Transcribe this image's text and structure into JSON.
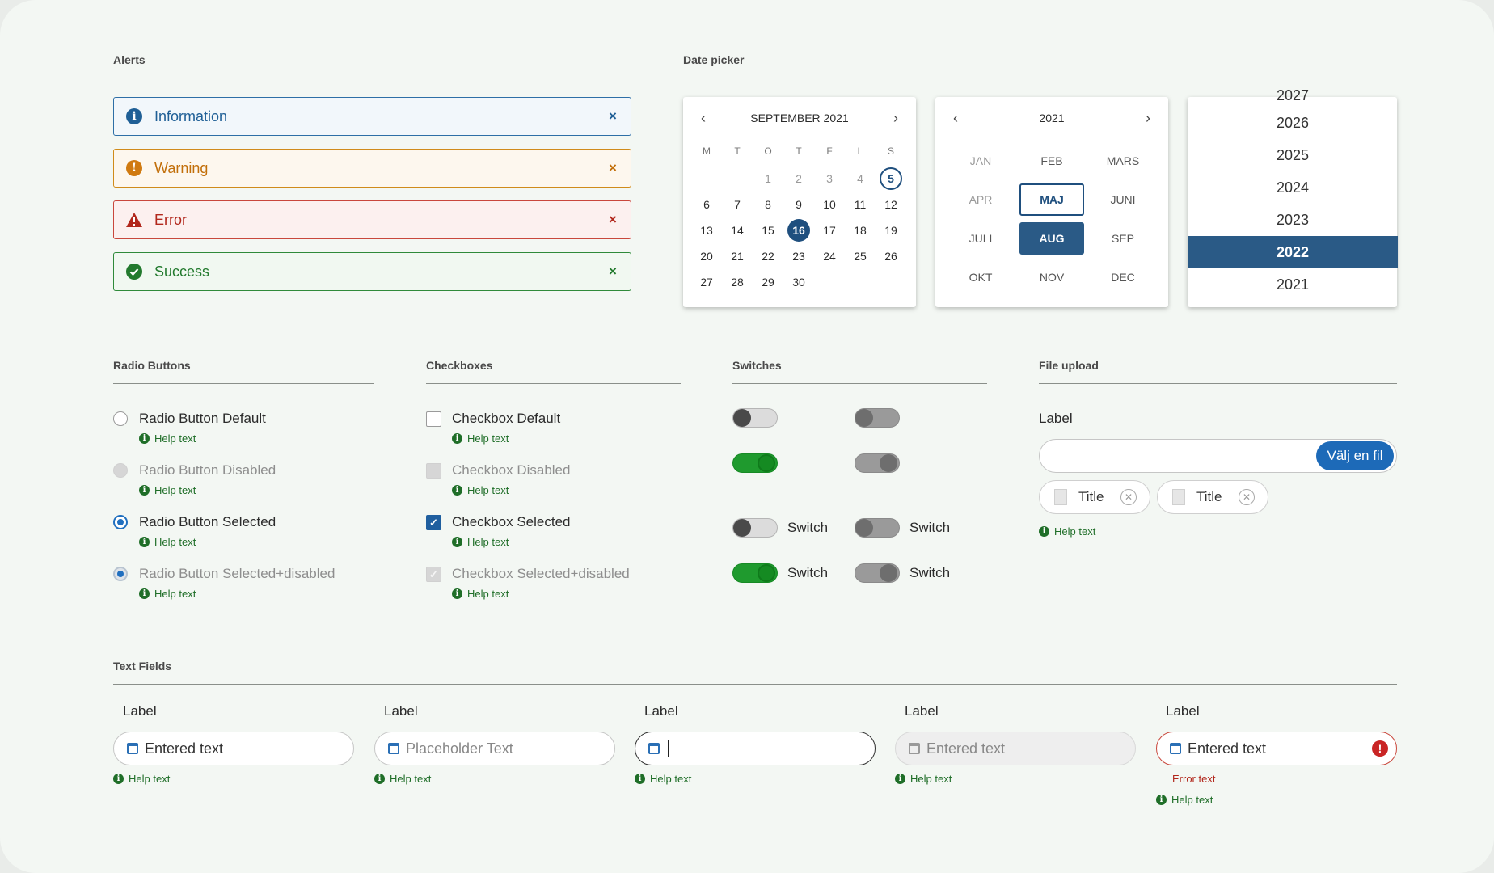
{
  "sections": {
    "alerts": "Alerts",
    "date_picker": "Date picker",
    "radio_buttons": "Radio Buttons",
    "checkboxes": "Checkboxes",
    "switches": "Switches",
    "file_upload": "File upload",
    "text_fields": "Text Fields"
  },
  "alerts": {
    "info": "Information",
    "warning": "Warning",
    "error": "Error",
    "success": "Success",
    "close": "×"
  },
  "calendar": {
    "month_title": "SEPTEMBER 2021",
    "weekdays": [
      "M",
      "T",
      "O",
      "T",
      "F",
      "L",
      "S"
    ],
    "prev": "‹",
    "next": "›"
  },
  "month_picker": {
    "year": "2021",
    "months": [
      "JAN",
      "FEB",
      "MARS",
      "APR",
      "MAJ",
      "JUNI",
      "JULI",
      "AUG",
      "SEP",
      "OKT",
      "NOV",
      "DEC"
    ],
    "focused": "MAJ",
    "selected": "AUG"
  },
  "year_picker": {
    "years": [
      "2027",
      "2026",
      "2025",
      "2024",
      "2023",
      "2022",
      "2021"
    ],
    "selected": "2022"
  },
  "radios": [
    {
      "label": "Radio Button Default",
      "help": "Help text",
      "state": "default"
    },
    {
      "label": "Radio Button Disabled",
      "help": "Help text",
      "state": "disabled"
    },
    {
      "label": "Radio Button Selected",
      "help": "Help text",
      "state": "selected"
    },
    {
      "label": "Radio Button Selected+disabled",
      "help": "Help text",
      "state": "selected-disabled"
    }
  ],
  "checkboxes": [
    {
      "label": "Checkbox Default",
      "help": "Help text",
      "state": "default"
    },
    {
      "label": "Checkbox Disabled",
      "help": "Help text",
      "state": "disabled"
    },
    {
      "label": "Checkbox Selected",
      "help": "Help text",
      "state": "selected"
    },
    {
      "label": "Checkbox Selected+disabled",
      "help": "Help text",
      "state": "selected-disabled"
    }
  ],
  "switches": {
    "label": "Switch"
  },
  "file_upload": {
    "label": "Label",
    "button": "Välj en fil",
    "files": [
      "Title",
      "Title"
    ],
    "help": "Help text"
  },
  "text_fields": [
    {
      "label": "Label",
      "value": "Entered text",
      "help": "Help text",
      "state": "filled"
    },
    {
      "label": "Label",
      "value": "Placeholder Text",
      "help": "Help text",
      "state": "placeholder"
    },
    {
      "label": "Label",
      "value": "",
      "help": "Help text",
      "state": "focused"
    },
    {
      "label": "Label",
      "value": "Entered text",
      "help": "Help text",
      "state": "disabled"
    },
    {
      "label": "Label",
      "value": "Entered text",
      "help": "Help text",
      "state": "error",
      "error": "Error text"
    }
  ],
  "colors": {
    "primary": "#1f4f7e",
    "success": "#1f9a2e",
    "error": "#c9473c",
    "warning": "#d08b1a",
    "info": "#2e6fa6"
  }
}
